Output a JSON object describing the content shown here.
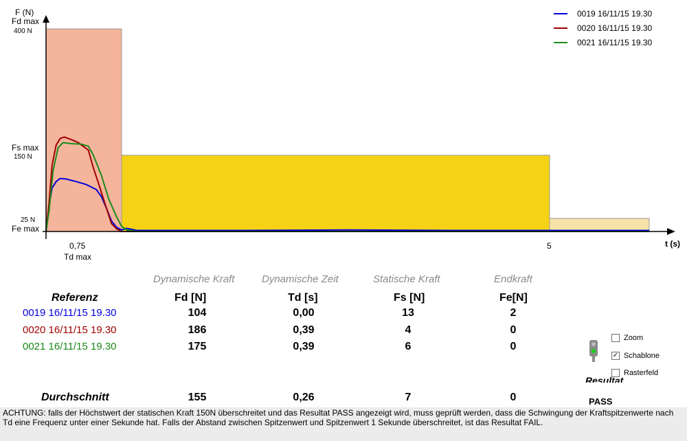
{
  "chart_data": {
    "type": "line",
    "axis": {
      "x_label": "t (s)",
      "y_label": "F (N)",
      "y_labels": {
        "fd_max": "Fd max",
        "f400": "400 N",
        "fs_max": "Fs max",
        "f150": "150 N",
        "f25": "25 N",
        "fe_max": "Fe max"
      },
      "x_labels": {
        "t075": "0,75",
        "td_max": "Td max",
        "t5": "5"
      },
      "xlim": [
        0,
        6.05
      ],
      "ylim": [
        0,
        420
      ]
    },
    "template_zones": [
      {
        "name": "Td max zone",
        "x": [
          0,
          0.75
        ],
        "y": [
          0,
          400
        ],
        "color": "#f5b49c"
      },
      {
        "name": "Fs max zone",
        "x": [
          0.75,
          5
        ],
        "y": [
          0,
          150
        ],
        "color": "#f5d215"
      },
      {
        "name": "Fe max zone",
        "x": [
          5,
          6
        ],
        "y": [
          0,
          25
        ],
        "color": "#f7e3a8"
      }
    ],
    "series": [
      {
        "name": "0019 16/11/15 19.30",
        "color": "#0000dd",
        "x": [
          0,
          0.03,
          0.06,
          0.1,
          0.14,
          0.2,
          0.3,
          0.4,
          0.5,
          0.55,
          0.6,
          0.65,
          0.7,
          0.75,
          0.8,
          0.9,
          1.0,
          2.0,
          3.0,
          4.0,
          5.0,
          6.0
        ],
        "y": [
          0,
          50,
          85,
          98,
          104,
          103,
          98,
          92,
          82,
          68,
          45,
          20,
          8,
          3,
          6,
          2,
          2,
          2,
          3,
          2,
          2,
          2
        ]
      },
      {
        "name": "0020 16/11/15 19.30",
        "color": "#a00000",
        "x": [
          0,
          0.03,
          0.06,
          0.1,
          0.14,
          0.18,
          0.25,
          0.32,
          0.42,
          0.47,
          0.52,
          0.6,
          0.65,
          0.7,
          0.75,
          0.85,
          1.0,
          6.0
        ],
        "y": [
          0,
          55,
          130,
          170,
          183,
          186,
          181,
          175,
          160,
          125,
          95,
          45,
          15,
          5,
          0,
          0,
          0,
          0
        ]
      },
      {
        "name": "0021 16/11/15 19.30",
        "color": "#1a8a1a",
        "x": [
          0,
          0.03,
          0.07,
          0.12,
          0.17,
          0.25,
          0.35,
          0.42,
          0.47,
          0.55,
          0.62,
          0.7,
          0.75,
          0.8,
          0.9,
          1.0,
          6.0
        ],
        "y": [
          0,
          40,
          120,
          165,
          175,
          173,
          172,
          168,
          150,
          110,
          65,
          28,
          10,
          3,
          0,
          0,
          0
        ]
      }
    ]
  },
  "table": {
    "headers": [
      "Dynamische Kraft",
      "Dynamische Zeit",
      "Statische Kraft",
      "Endkraft"
    ],
    "ref_title": "Referenz",
    "units": [
      "Fd [N]",
      "Td [s]",
      "Fs [N]",
      "Fe[N]"
    ],
    "rows": [
      {
        "label": "0019 16/11/15 19.30",
        "color": "#0000dd",
        "values": [
          "104",
          "0,00",
          "13",
          "2"
        ]
      },
      {
        "label": "0020 16/11/15 19.30",
        "color": "#a00000",
        "values": [
          "186",
          "0,39",
          "4",
          "0"
        ]
      },
      {
        "label": "0021 16/11/15 19.30",
        "color": "#1a8a1a",
        "values": [
          "175",
          "0,39",
          "6",
          "0"
        ]
      }
    ],
    "average": {
      "label": "Durchschnitt",
      "values": [
        "155",
        "0,26",
        "7",
        "0"
      ]
    }
  },
  "options": {
    "zoom": {
      "label": "Zoom",
      "checked": false
    },
    "schablone": {
      "label": "Schablone",
      "checked": true
    },
    "rasterfeld": {
      "label": "Rasterfeld",
      "checked": false
    }
  },
  "result": {
    "title": "Resultat",
    "value": "PASS",
    "indicator_color": "#22cc22"
  },
  "note": "ACHTUNG: falls der Höchstwert der statischen Kraft 150N überschreitet und das Resultat PASS angezeigt wird, muss geprüft werden, dass die Schwingung der Kraftspitzenwerte nach Td eine  Frequenz unter einer Sekunde hat. Falls der Abstand zwischen Spitzenwert und  Spitzenwert 1 Sekunde überschreitet, ist das Resultat FAIL."
}
